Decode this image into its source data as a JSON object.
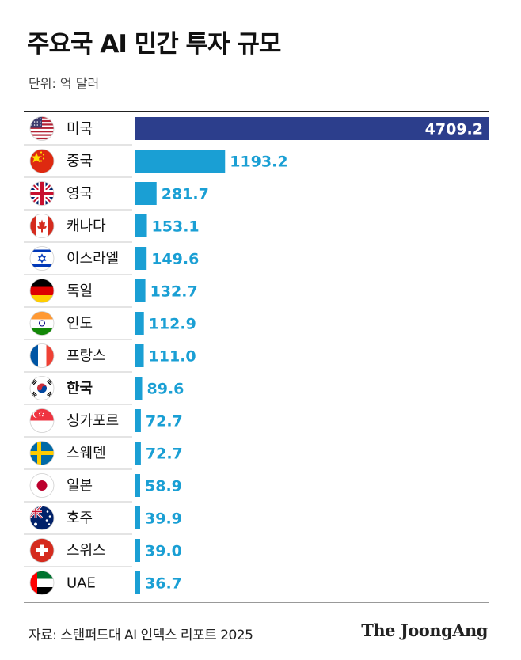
{
  "chart_data": {
    "type": "bar",
    "orientation": "horizontal",
    "title": "주요국 AI 민간 투자 규모",
    "unit_label": "단위: 억 달러",
    "categories": [
      "미국",
      "중국",
      "영국",
      "캐나다",
      "이스라엘",
      "독일",
      "인도",
      "프랑스",
      "한국",
      "싱가포르",
      "스웨덴",
      "일본",
      "호주",
      "스위스",
      "UAE"
    ],
    "values": [
      4709.2,
      1193.2,
      281.7,
      153.1,
      149.6,
      132.7,
      112.9,
      111.0,
      89.6,
      72.7,
      72.7,
      58.9,
      39.9,
      39.0,
      36.7
    ],
    "value_labels": [
      "4709.2",
      "1193.2",
      "281.7",
      "153.1",
      "149.6",
      "132.7",
      "112.9",
      "111.0",
      "89.6",
      "72.7",
      "72.7",
      "58.9",
      "39.9",
      "39.0",
      "36.7"
    ],
    "flag_icons": [
      "us-flag-icon",
      "china-flag-icon",
      "uk-flag-icon",
      "canada-flag-icon",
      "israel-flag-icon",
      "germany-flag-icon",
      "india-flag-icon",
      "france-flag-icon",
      "korea-flag-icon",
      "singapore-flag-icon",
      "sweden-flag-icon",
      "japan-flag-icon",
      "australia-flag-icon",
      "switzerland-flag-icon",
      "uae-flag-icon"
    ],
    "highlight_category": "한국",
    "top_bar_color": "#2c3e8c",
    "bar_color": "#1a9fd4",
    "top_label_color": "#ffffff",
    "label_color": "#1a9fd4"
  },
  "source": "자료: 스탠퍼드대 AI 인덱스 리포트 2025",
  "logo": "The JoongAng"
}
